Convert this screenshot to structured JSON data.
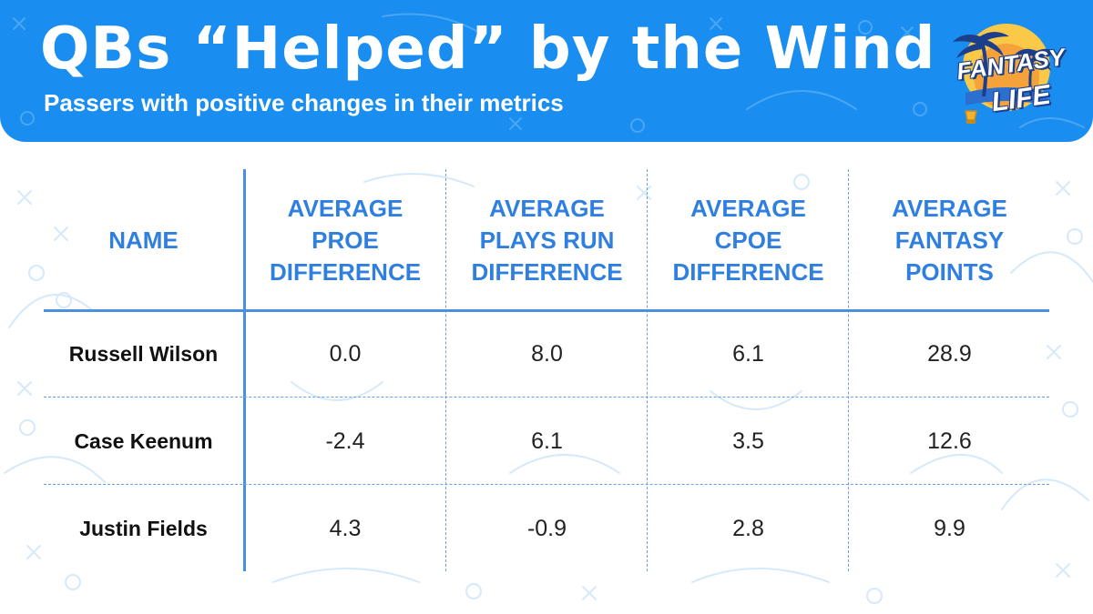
{
  "header": {
    "title": "QBs “Helped” by the Wind",
    "subtitle": "Passers with positive changes in their metrics"
  },
  "logo": {
    "line1": "FANTASY",
    "line2": "LIFE"
  },
  "colors": {
    "header_bg": "#1a8ef0",
    "header_text": "#ffffff",
    "column_header": "#2f7fe0",
    "rules": "#4a8fe0"
  },
  "chart_data": {
    "type": "table",
    "title": "QBs “Helped” by the Wind",
    "subtitle": "Passers with positive changes in their metrics",
    "columns": [
      "NAME",
      "AVERAGE\nPROE\nDIFFERENCE",
      "AVERAGE\nPLAYS RUN\nDIFFERENCE",
      "AVERAGE\nCPOE\nDIFFERENCE",
      "AVERAGE\nFANTASY\nPOINTS"
    ],
    "rows": [
      [
        "Russell Wilson",
        "0.0",
        "8.0",
        "6.1",
        "28.9"
      ],
      [
        "Case Keenum",
        "-2.4",
        "6.1",
        "3.5",
        "12.6"
      ],
      [
        "Justin Fields",
        "4.3",
        "-0.9",
        "2.8",
        "9.9"
      ]
    ]
  }
}
